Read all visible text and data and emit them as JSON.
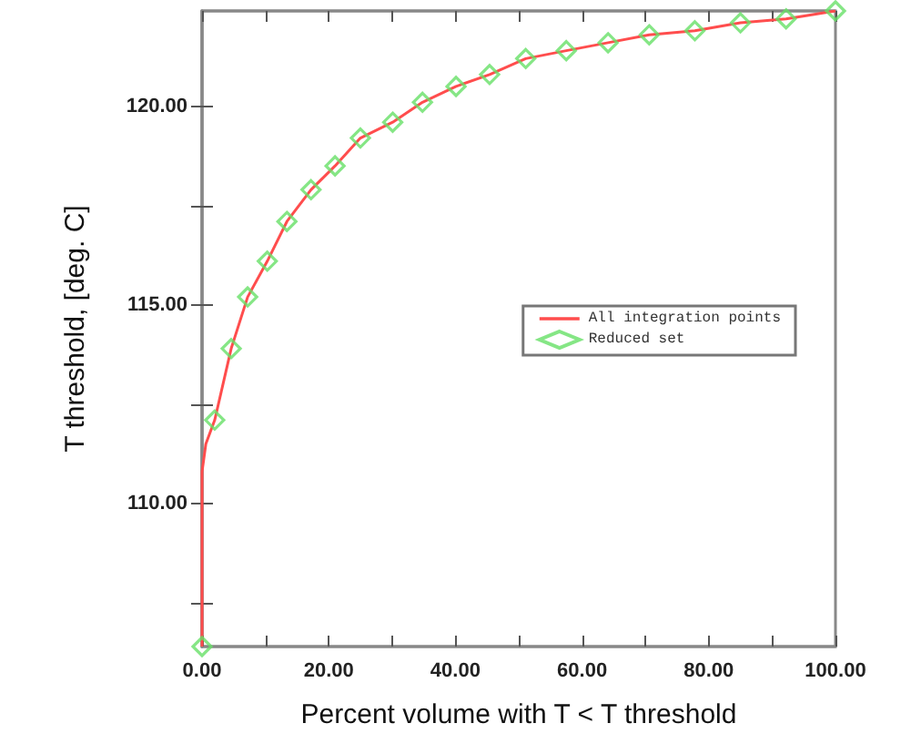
{
  "chart_data": {
    "type": "line",
    "xlabel": "Percent volume with T < T threshold",
    "ylabel": "T threshold, [deg. C]",
    "xlim": [
      0,
      100
    ],
    "ylim": [
      106.4,
      122.4
    ],
    "xticks": [
      {
        "value": 0,
        "label": "0.00"
      },
      {
        "value": 10,
        "label": null
      },
      {
        "value": 20,
        "label": "20.00"
      },
      {
        "value": 30,
        "label": null
      },
      {
        "value": 40,
        "label": "40.00"
      },
      {
        "value": 50,
        "label": null
      },
      {
        "value": 60,
        "label": "60.00"
      },
      {
        "value": 70,
        "label": null
      },
      {
        "value": 80,
        "label": "80.00"
      },
      {
        "value": 90,
        "label": null
      },
      {
        "value": 100,
        "label": "100.00"
      }
    ],
    "yticks": [
      {
        "value": 107.5,
        "label": null
      },
      {
        "value": 110,
        "label": "110.00"
      },
      {
        "value": 112.5,
        "label": null
      },
      {
        "value": 115,
        "label": "115.00"
      },
      {
        "value": 117.5,
        "label": null
      },
      {
        "value": 120,
        "label": "120.00"
      }
    ],
    "grid": false,
    "legend": "right",
    "series": [
      {
        "name": "All integration points",
        "color": "#ff4d4d",
        "marker": "none",
        "line_style": "solid",
        "x": [
          0,
          0,
          0.6,
          2.0,
          4.6,
          7.2,
          10.3,
          13.4,
          17.2,
          21.0,
          25.0,
          30.1,
          34.8,
          40.1,
          45.4,
          51.1,
          57.5,
          64.1,
          70.6,
          77.8,
          85.0,
          92.2,
          100
        ],
        "values": [
          106.4,
          110.8,
          111.5,
          112.1,
          113.9,
          115.2,
          116.1,
          117.1,
          117.9,
          118.5,
          119.2,
          119.6,
          120.1,
          120.5,
          120.8,
          121.2,
          121.4,
          121.6,
          121.8,
          121.9,
          122.1,
          122.2,
          122.4
        ]
      },
      {
        "name": "Reduced set",
        "type": "scatter",
        "color": "#66e066",
        "marker": "diamond",
        "x": [
          0,
          2.0,
          4.6,
          7.2,
          10.3,
          13.4,
          17.2,
          21.0,
          25.0,
          30.1,
          34.8,
          40.1,
          45.4,
          51.1,
          57.5,
          64.1,
          70.6,
          77.8,
          85.0,
          92.2,
          100
        ],
        "values": [
          106.4,
          112.1,
          113.9,
          115.2,
          116.1,
          117.1,
          117.9,
          118.5,
          119.2,
          119.6,
          120.1,
          120.5,
          120.8,
          121.2,
          121.4,
          121.6,
          121.8,
          121.9,
          122.1,
          122.2,
          122.4
        ]
      }
    ]
  }
}
